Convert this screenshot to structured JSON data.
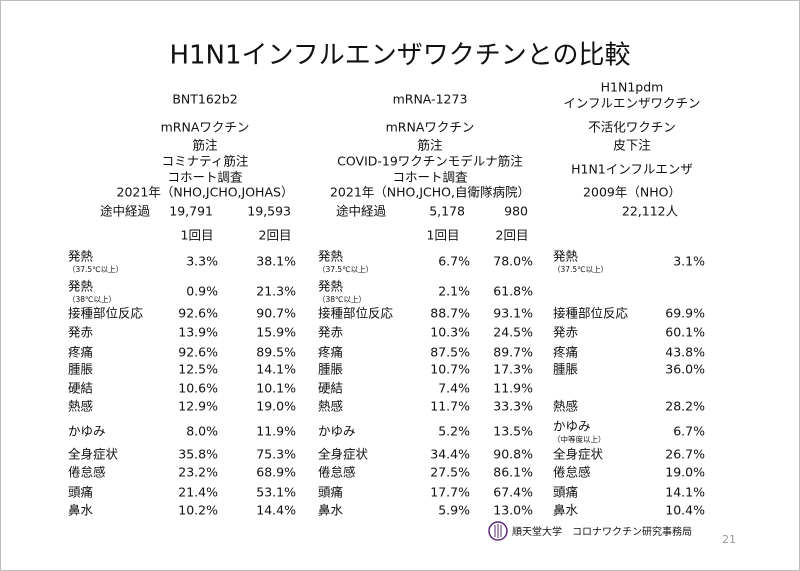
{
  "title": "H1N1インフルエンザワクチンとの比較",
  "columns": [
    {
      "header": [
        "BNT162b2",
        "mRNAワクチン",
        "筋注",
        "コミナティ筋注",
        "コホート調査",
        "2021年（NHO,JCHO,JOHAS）"
      ],
      "interim_label": "途中経過",
      "interim": [
        "19,791",
        "19,593"
      ],
      "doses": [
        "1回目",
        "2回目"
      ],
      "rows": [
        {
          "label": "発熱",
          "note": "（37.5℃以上）",
          "values": [
            "3.3%",
            "38.1%"
          ]
        },
        {
          "label": "発熱",
          "note": "（38℃以上）",
          "values": [
            "0.9%",
            "21.3%"
          ]
        },
        {
          "label": "接種部位反応",
          "values": [
            "92.6%",
            "90.7%"
          ]
        },
        {
          "label": "発赤",
          "values": [
            "13.9%",
            "15.9%"
          ]
        },
        {
          "label": "疼痛",
          "values": [
            "92.6%",
            "89.5%"
          ]
        },
        {
          "label": "腫脹",
          "values": [
            "12.5%",
            "14.1%"
          ]
        },
        {
          "label": "硬結",
          "values": [
            "10.6%",
            "10.1%"
          ]
        },
        {
          "label": "熱感",
          "values": [
            "12.9%",
            "19.0%"
          ]
        },
        {
          "label": "かゆみ",
          "values": [
            "8.0%",
            "11.9%"
          ]
        },
        {
          "label": "全身症状",
          "values": [
            "35.8%",
            "75.3%"
          ]
        },
        {
          "label": "倦怠感",
          "values": [
            "23.2%",
            "68.9%"
          ]
        },
        {
          "label": "頭痛",
          "values": [
            "21.4%",
            "53.1%"
          ]
        },
        {
          "label": "鼻水",
          "values": [
            "10.2%",
            "14.4%"
          ]
        }
      ]
    },
    {
      "header": [
        "mRNA-1273",
        "mRNAワクチン",
        "筋注",
        "COVID-19ワクチンモデルナ筋注",
        "コホート調査",
        "2021年（NHO,JCHO,自衛隊病院）"
      ],
      "interim_label": "途中経過",
      "interim": [
        "5,178",
        "980"
      ],
      "doses": [
        "1回目",
        "2回目"
      ],
      "rows": [
        {
          "label": "発熱",
          "note": "（37.5℃以上）",
          "values": [
            "6.7%",
            "78.0%"
          ]
        },
        {
          "label": "発熱",
          "note": "（38℃以上）",
          "values": [
            "2.1%",
            "61.8%"
          ]
        },
        {
          "label": "接種部位反応",
          "values": [
            "88.7%",
            "93.1%"
          ]
        },
        {
          "label": "発赤",
          "values": [
            "10.3%",
            "24.5%"
          ]
        },
        {
          "label": "疼痛",
          "values": [
            "87.5%",
            "89.7%"
          ]
        },
        {
          "label": "腫脹",
          "values": [
            "10.7%",
            "17.3%"
          ]
        },
        {
          "label": "硬結",
          "values": [
            "7.4%",
            "11.9%"
          ]
        },
        {
          "label": "熱感",
          "values": [
            "11.7%",
            "33.3%"
          ]
        },
        {
          "label": "かゆみ",
          "values": [
            "5.2%",
            "13.5%"
          ]
        },
        {
          "label": "全身症状",
          "values": [
            "34.4%",
            "90.8%"
          ]
        },
        {
          "label": "倦怠感",
          "values": [
            "27.5%",
            "86.1%"
          ]
        },
        {
          "label": "頭痛",
          "values": [
            "17.7%",
            "67.4%"
          ]
        },
        {
          "label": "鼻水",
          "values": [
            "5.9%",
            "13.0%"
          ]
        }
      ]
    },
    {
      "header": [
        "H1N1pdm",
        "インフルエンザワクチン",
        "不活化ワクチン",
        "皮下注",
        "H1N1インフルエンザ",
        "2009年（NHO）"
      ],
      "interim": [
        "22,112人"
      ],
      "rows": [
        {
          "label": "発熱",
          "note": "（37.5℃以上）",
          "values": [
            "3.1%"
          ]
        },
        {
          "label": "接種部位反応",
          "values": [
            "69.9%"
          ]
        },
        {
          "label": "発赤",
          "values": [
            "60.1%"
          ]
        },
        {
          "label": "疼痛",
          "values": [
            "43.8%"
          ]
        },
        {
          "label": "腫脹",
          "values": [
            "36.0%"
          ]
        },
        {
          "label": "熱感",
          "values": [
            "28.2%"
          ]
        },
        {
          "label": "かゆみ",
          "note": "（中等度以上）",
          "values": [
            "6.7%"
          ]
        },
        {
          "label": "全身症状",
          "values": [
            "26.7%"
          ]
        },
        {
          "label": "倦怠感",
          "values": [
            "19.0%"
          ]
        },
        {
          "label": "頭痛",
          "values": [
            "14.1%"
          ]
        },
        {
          "label": "鼻水",
          "values": [
            "10.4%"
          ]
        }
      ]
    }
  ],
  "footer": {
    "org": "順天堂大学　コロナワクチン研究事務局",
    "page": "21"
  }
}
